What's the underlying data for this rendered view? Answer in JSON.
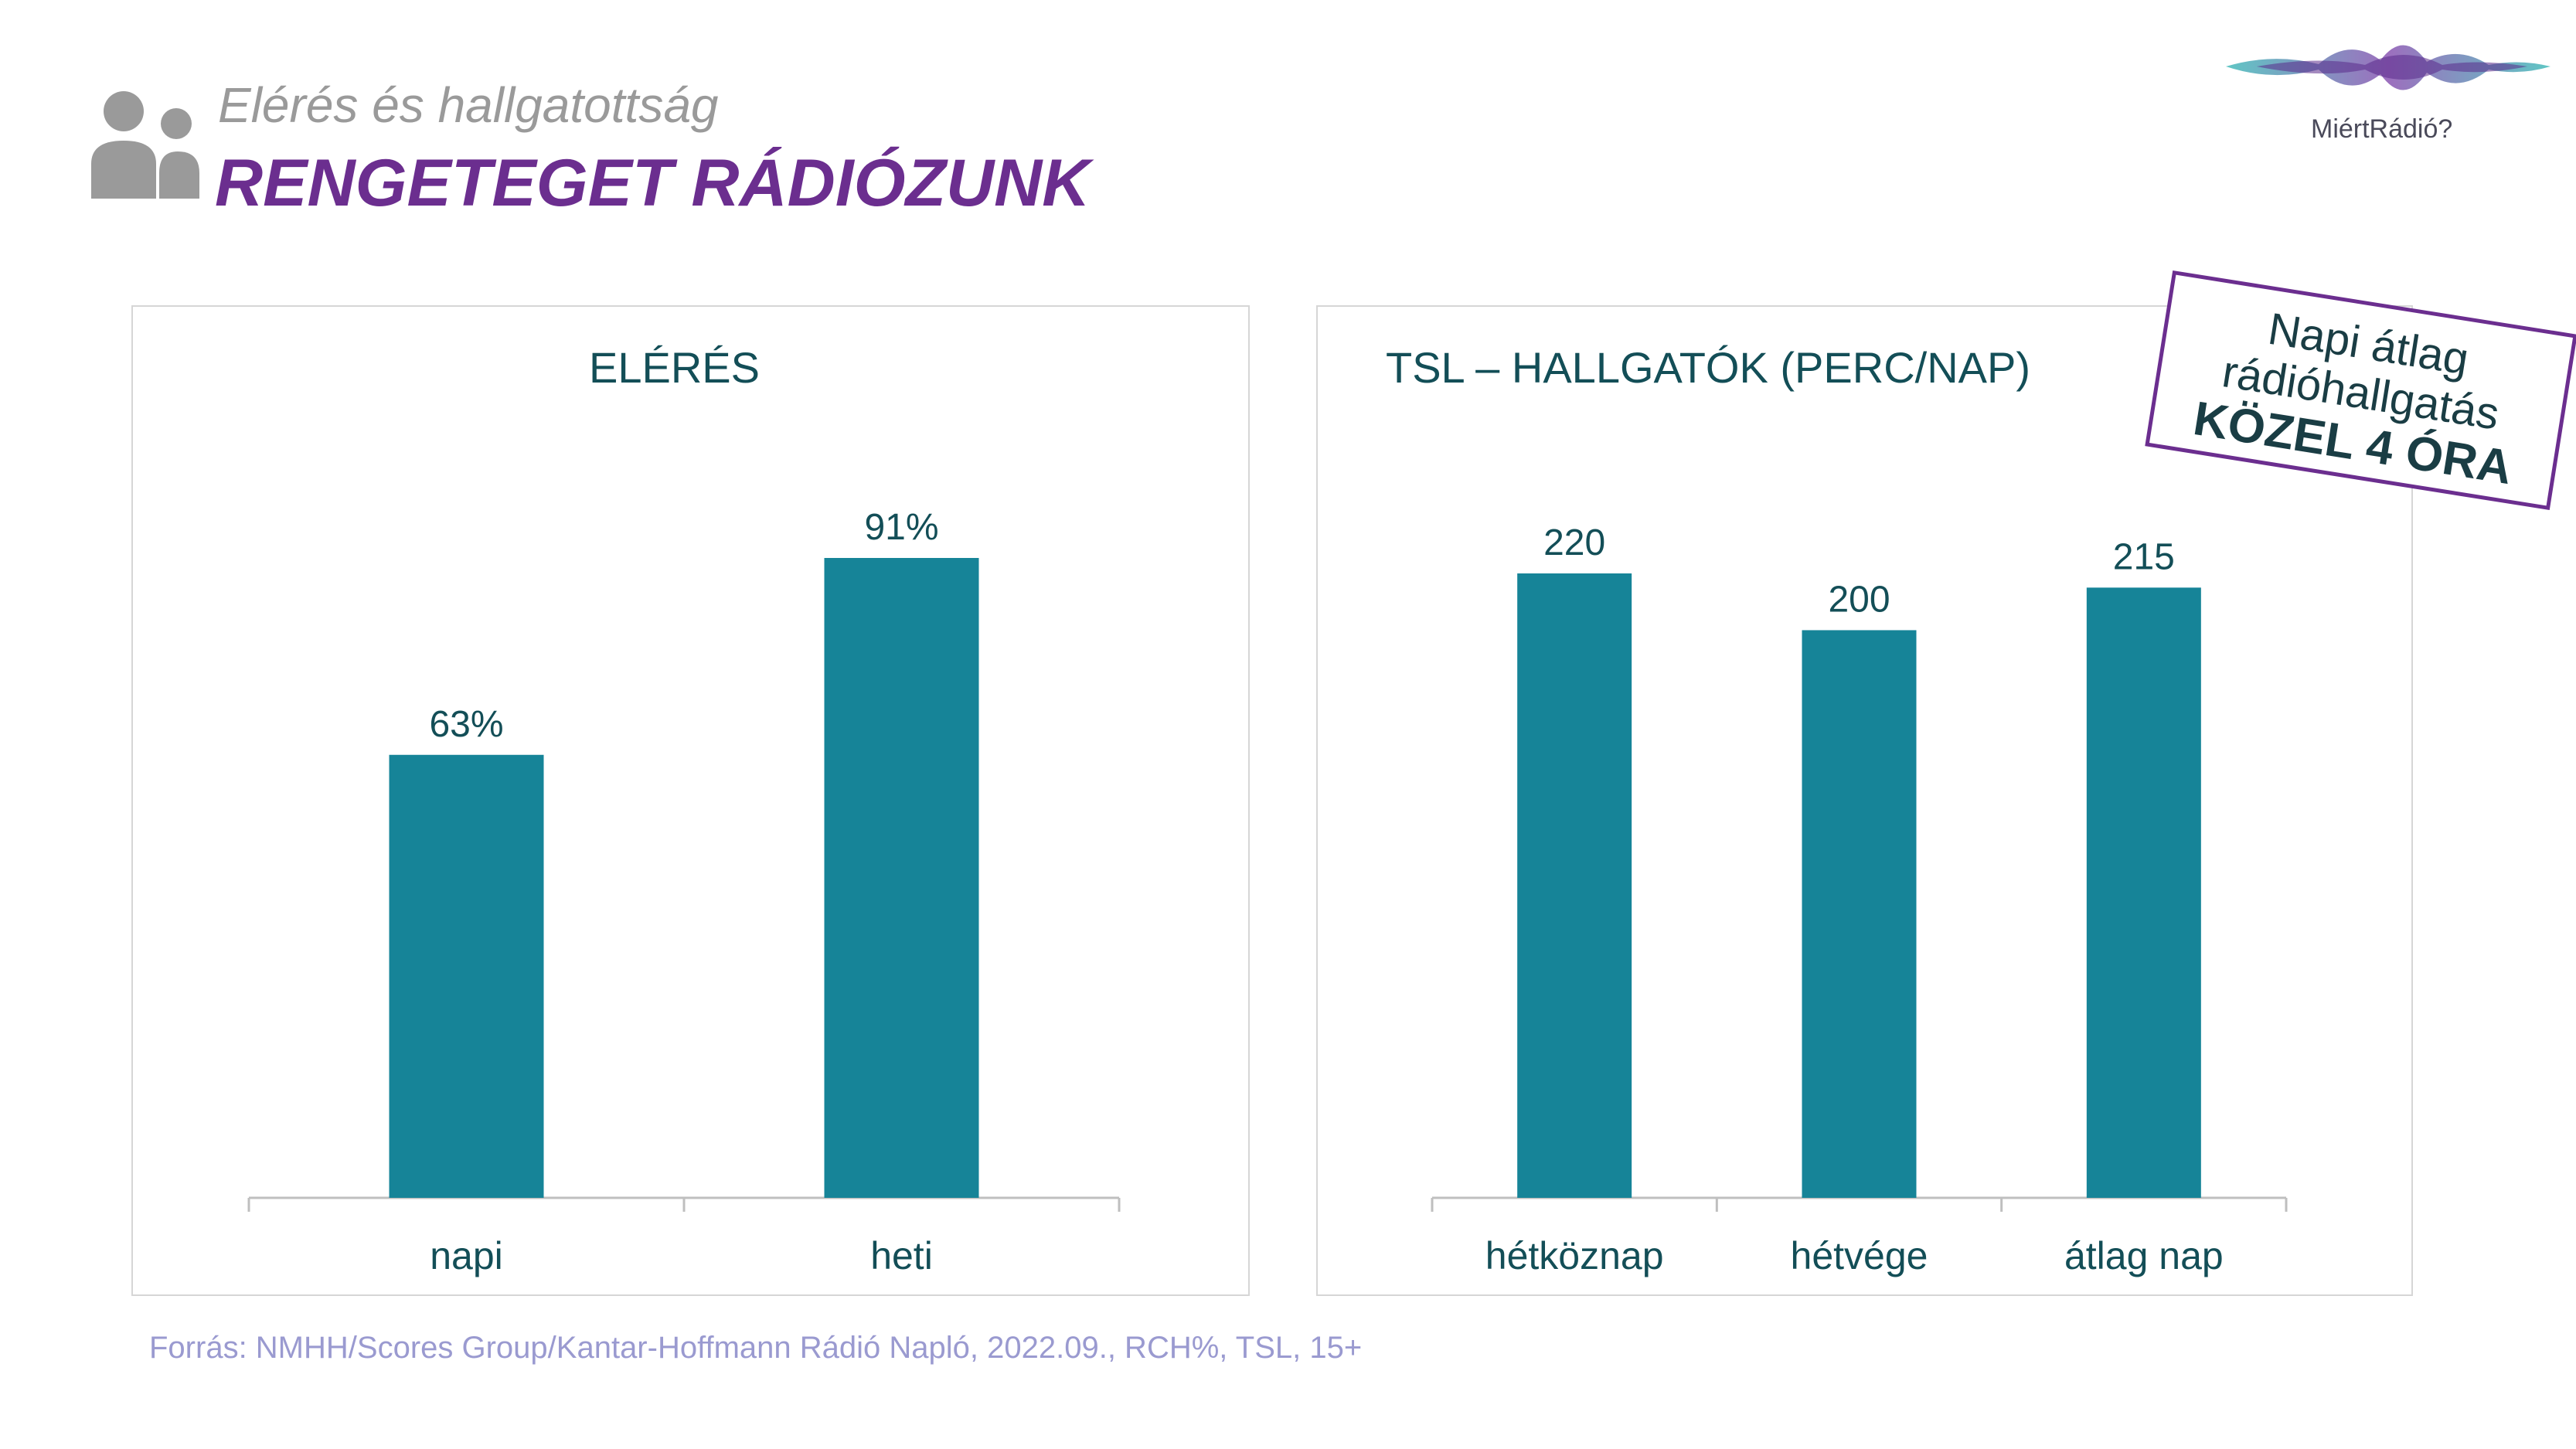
{
  "header": {
    "subtitle": "Elérés és hallgatottság",
    "title": "RENGETEGET RÁDIÓZUNK",
    "icon": "people-icon"
  },
  "logo": {
    "text": "MiértRádió?",
    "icon": "soundwave-logo"
  },
  "callout": {
    "line1": "Napi átlag",
    "line2": "rádióhallgatás",
    "line3": "KÖZEL 4 ÓRA",
    "border_color": "#6b2e8f"
  },
  "source": "Forrás: NMHH/Scores Group/Kantar-Hoffmann Rádió Napló, 2022.09., RCH%, TSL, 15+",
  "colors": {
    "bar": "#168498",
    "title": "#6b2e8f",
    "label": "#134e57"
  },
  "chart_data": [
    {
      "type": "bar",
      "title": "ELÉRÉS",
      "categories": [
        "napi",
        "heti"
      ],
      "values": [
        63,
        91
      ],
      "value_labels": [
        "63%",
        "91%"
      ],
      "ylim": [
        0,
        100
      ],
      "grid": false
    },
    {
      "type": "bar",
      "title": "TSL – HALLGATÓK (PERC/NAP)",
      "categories": [
        "hétköznap",
        "hétvége",
        "átlag nap"
      ],
      "values": [
        220,
        200,
        215
      ],
      "value_labels": [
        "220",
        "200",
        "215"
      ],
      "ylim": [
        0,
        240
      ],
      "grid": false
    }
  ]
}
